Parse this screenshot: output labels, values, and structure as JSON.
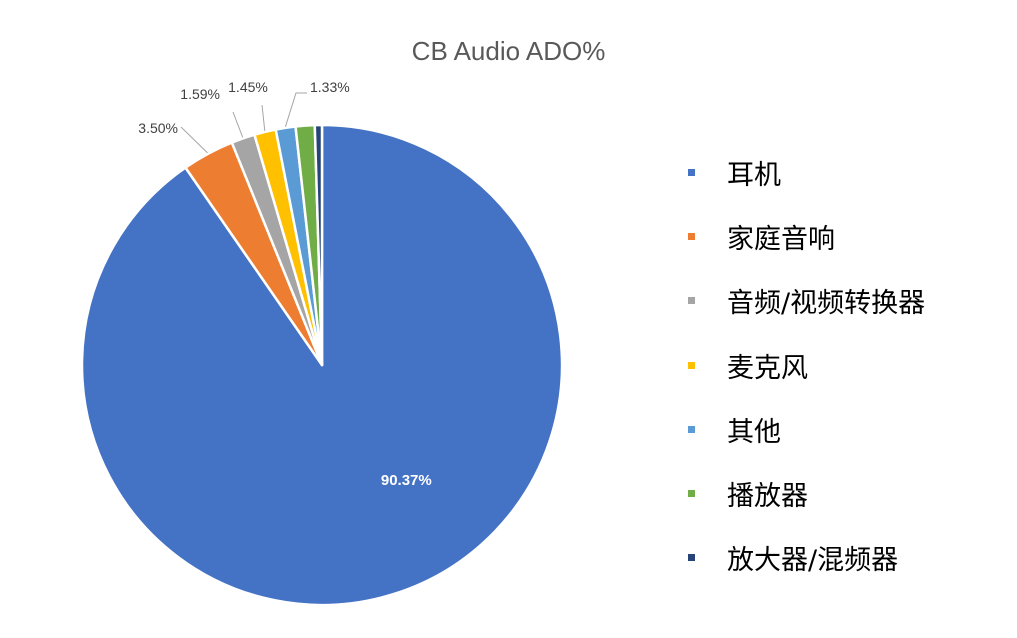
{
  "chart_data": {
    "type": "pie",
    "title": "CB Audio ADO%",
    "categories": [
      "耳机",
      "家庭音响",
      "音频/视频转换器",
      "麦克风",
      "其他",
      "播放器",
      "放大器/混频器"
    ],
    "values": [
      90.37,
      3.5,
      1.59,
      1.45,
      1.33,
      1.28,
      0.48
    ],
    "colors": [
      "#4472C4",
      "#ED7D31",
      "#A5A5A5",
      "#FFC000",
      "#5B9BD5",
      "#70AD47",
      "#264478"
    ],
    "data_labels": [
      "90.37%",
      "3.50%",
      "1.59%",
      "1.45%",
      "1.33%",
      "",
      ""
    ],
    "legend_position": "right",
    "start_angle": "12 o'clock",
    "direction": "clockwise"
  }
}
